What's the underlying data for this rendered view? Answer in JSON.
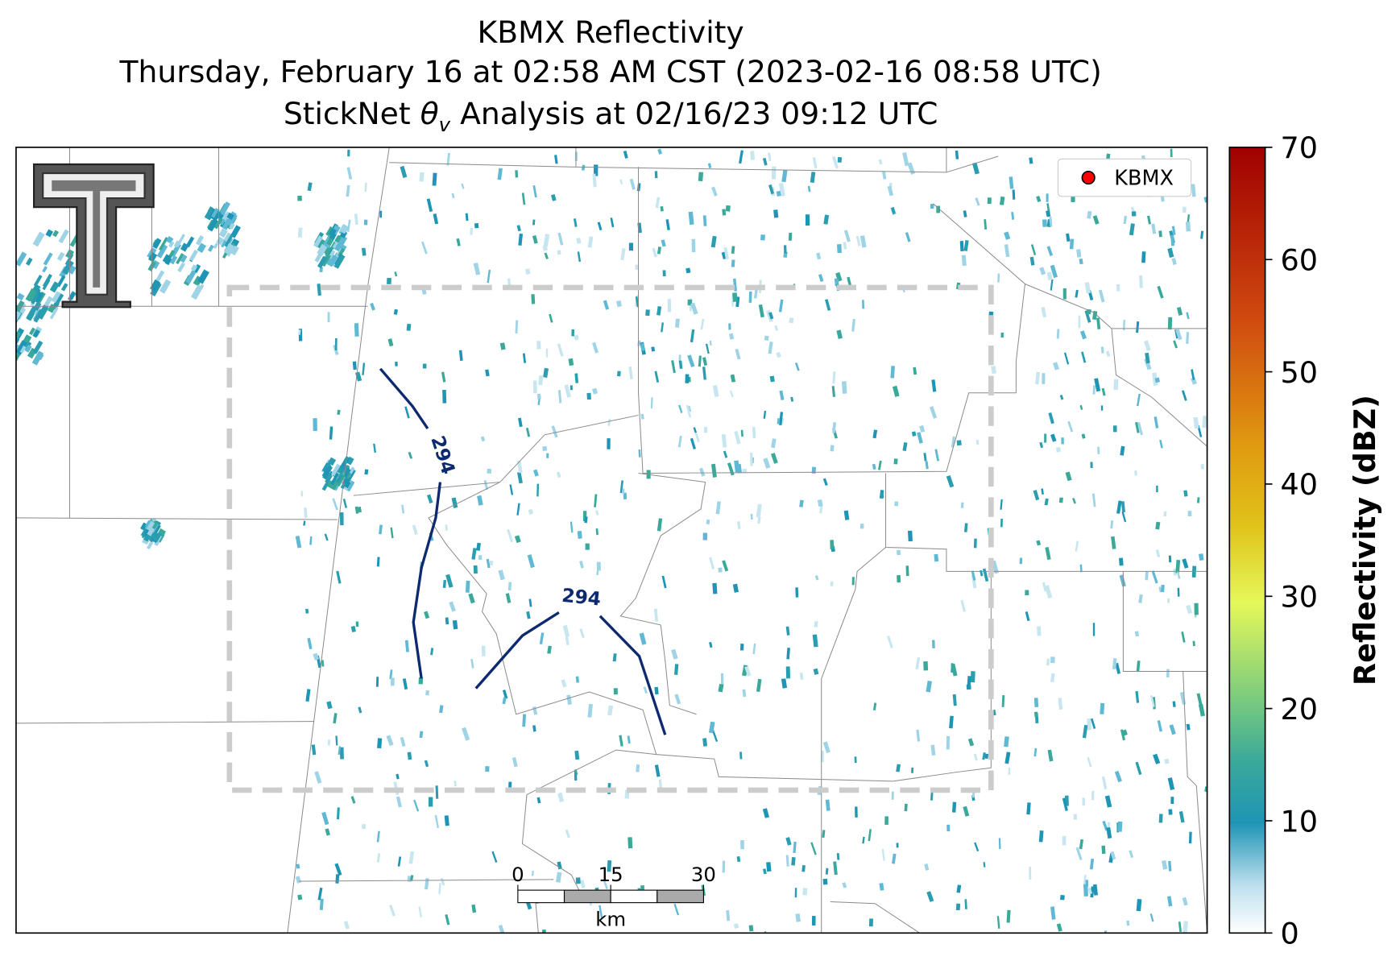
{
  "title": {
    "line1": "KBMX Reflectivity",
    "line2": "Thursday, February 16 at 02:58 AM CST (2023-02-16 08:58 UTC)",
    "line3": {
      "prefix": "StickNet ",
      "symbol": "θ",
      "subscript": "v",
      "suffix": " Analysis at 02/16/23 09:12 UTC"
    }
  },
  "legend": {
    "label": "KBMX",
    "color": "#ff0000"
  },
  "contours": [
    {
      "label": "294"
    },
    {
      "label": "294"
    }
  ],
  "scale_bar": {
    "ticks": [
      0,
      15,
      30
    ],
    "unit": "km"
  },
  "colorbar": {
    "label": "Reflectivity (dBZ)",
    "lim": [
      0,
      70
    ],
    "ticks": [
      0,
      10,
      20,
      30,
      40,
      50,
      60,
      70
    ]
  }
}
